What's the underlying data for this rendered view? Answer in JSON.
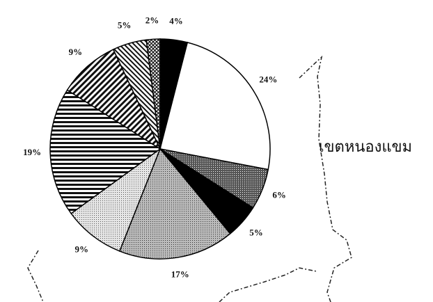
{
  "chart_data": {
    "type": "pie",
    "values": [
      4,
      24,
      6,
      5,
      17,
      9,
      19,
      9,
      5,
      2
    ],
    "value_labels": [
      "4%",
      "24%",
      "6%",
      "5%",
      "17%",
      "9%",
      "19%",
      "9%",
      "5%",
      "2%"
    ],
    "patterns": [
      "solid-black",
      "white",
      "dense-dots",
      "solid-black",
      "dots",
      "light-dots",
      "horizontal-stripes",
      "diagonal-stripes",
      "back-diagonal-stripes",
      "crosshatch"
    ],
    "annotation": "เขตหนองแขม"
  }
}
